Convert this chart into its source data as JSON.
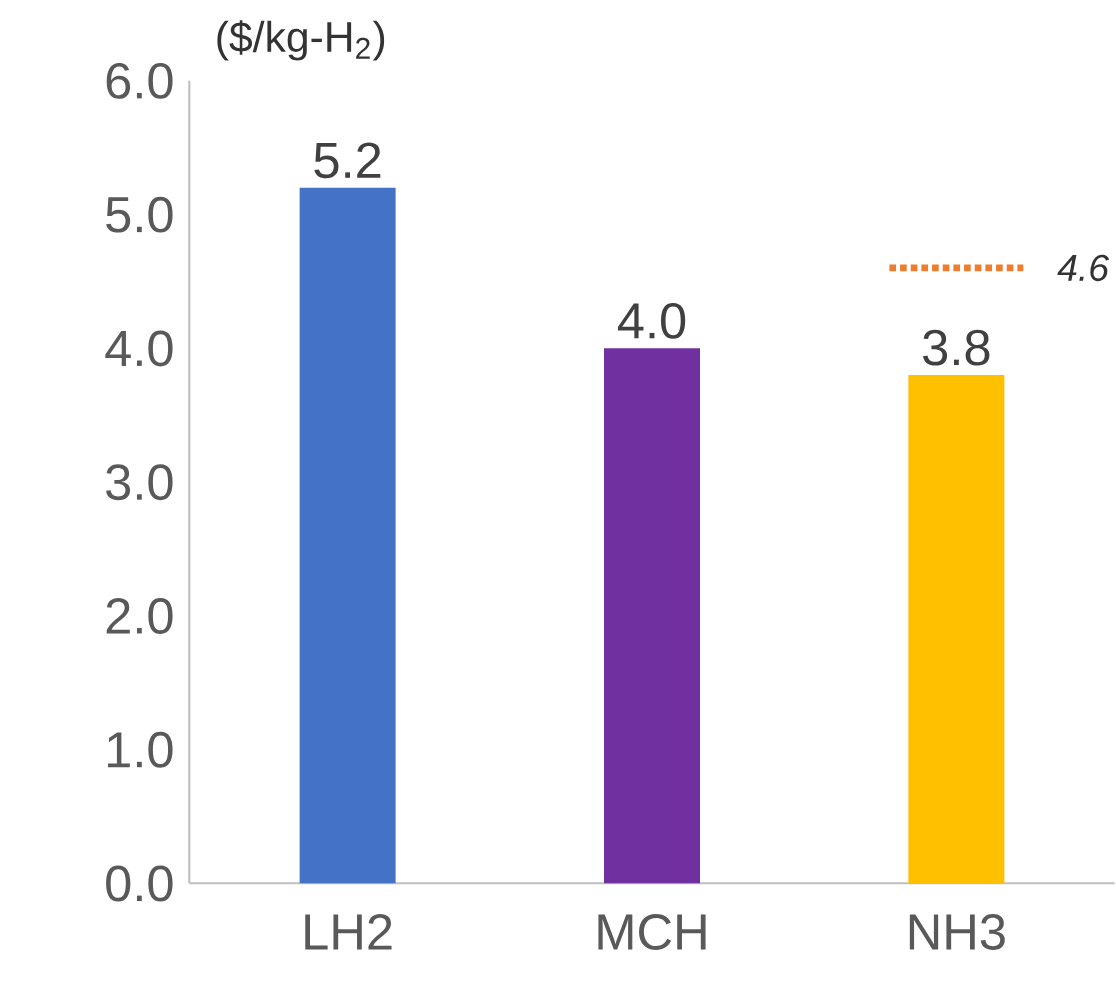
{
  "chart_data": {
    "type": "bar",
    "ylabel": "($/kg-H$_{2}$)",
    "categories": [
      "LH2",
      "MCH",
      "NH3"
    ],
    "values": [
      5.2,
      4.0,
      3.8
    ],
    "colors": [
      "#4472c4",
      "#7030a0",
      "#ffc000"
    ],
    "ylim": [
      0,
      6
    ],
    "yticks": [
      {
        "value": 0,
        "label": "0.0"
      },
      {
        "value": 1,
        "label": "1.0"
      },
      {
        "value": 2,
        "label": "2.0"
      },
      {
        "value": 3,
        "label": "3.0"
      },
      {
        "value": 4,
        "label": "4.0"
      },
      {
        "value": 5,
        "label": "5.0"
      },
      {
        "value": 6,
        "label": "6.0"
      }
    ],
    "value_labels": [
      "5.2",
      "4.0",
      "3.8"
    ],
    "ref_lines": [
      {
        "axis": "y",
        "value": 4.6,
        "label": "4.6",
        "color": "#ed7d31",
        "line_style": "dotted"
      }
    ]
  }
}
